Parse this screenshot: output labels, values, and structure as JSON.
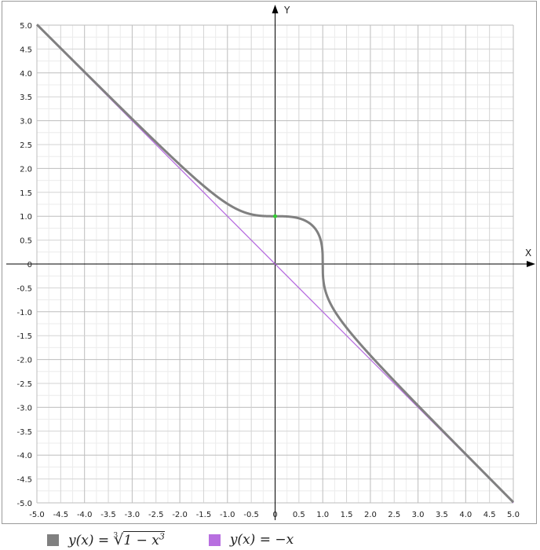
{
  "chart_data": {
    "type": "line",
    "title": "",
    "xlabel": "X",
    "ylabel": "Y",
    "xlim": [
      -5.0,
      5.0
    ],
    "ylim": [
      -5.0,
      5.0
    ],
    "major_step": 0.5,
    "grid": true,
    "x_ticks": [
      "-5.0",
      "-4.5",
      "-4.0",
      "-3.5",
      "-3.0",
      "-2.5",
      "-2.0",
      "-1.5",
      "-1.0",
      "-0.5",
      "0",
      "0.5",
      "1.0",
      "1.5",
      "2.0",
      "2.5",
      "3.0",
      "3.5",
      "4.0",
      "4.5",
      "5.0"
    ],
    "y_ticks": [
      "5.0",
      "4.5",
      "4.0",
      "3.5",
      "3.0",
      "2.5",
      "2.0",
      "1.5",
      "1.0",
      "0.5",
      "0",
      "-0.5",
      "-1.0",
      "-1.5",
      "-2.0",
      "-2.5",
      "-3.0",
      "-3.5",
      "-4.0",
      "-4.5",
      "-5.0"
    ],
    "series": [
      {
        "name": "y(x) = ∛(1 − x³)",
        "color": "#808080",
        "function": "cbrt(1 - x^3)",
        "x": [
          -5.0,
          -4.5,
          -4.0,
          -3.5,
          -3.0,
          -2.5,
          -2.0,
          -1.5,
          -1.0,
          -0.5,
          0,
          0.5,
          0.8,
          0.9,
          0.95,
          1.0,
          1.05,
          1.1,
          1.2,
          1.5,
          2.0,
          2.5,
          3.0,
          3.5,
          4.0,
          4.5,
          5.0
        ],
        "y": [
          5.0,
          4.5,
          4.0,
          3.51,
          3.04,
          2.55,
          2.08,
          1.63,
          1.26,
          1.04,
          1.0,
          0.96,
          0.8,
          0.65,
          0.53,
          0,
          -0.55,
          -0.69,
          -0.9,
          -1.39,
          -1.91,
          -2.45,
          -2.96,
          -3.47,
          -3.98,
          -4.48,
          -4.99
        ]
      },
      {
        "name": "y(x) = −x",
        "color": "#b86fe0",
        "function": "-x",
        "x": [
          -5.0,
          5.0
        ],
        "y": [
          5.0,
          -5.0
        ]
      }
    ],
    "points": [
      {
        "x": 0,
        "y": 1,
        "color": "#33cc33"
      }
    ],
    "legend_position": "bottom-left"
  },
  "legend": {
    "item1": {
      "prefix": "y(x) = ",
      "index": "3",
      "radicand_start": "1 − x",
      "exponent": "3",
      "color": "#808080"
    },
    "item2": {
      "text": "y(x) = −x",
      "color": "#b86fe0"
    }
  }
}
